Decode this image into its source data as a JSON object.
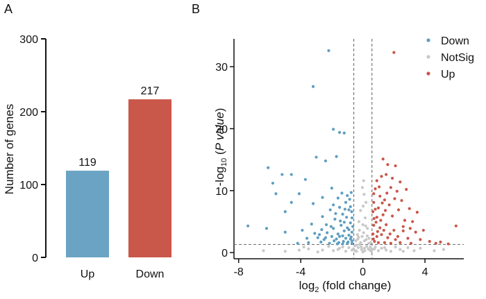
{
  "panels": {
    "a": "A",
    "b": "B"
  },
  "colors": {
    "up": "#c9574a",
    "down": "#5f9ec0",
    "notsig": "#c8c8c8",
    "bar_up": "#6aa3c4",
    "bar_down": "#c9574a"
  },
  "chart_data": [
    {
      "type": "bar",
      "categories": [
        "Up",
        "Down"
      ],
      "values": [
        119,
        217
      ],
      "data_labels": [
        "119",
        "217"
      ],
      "ylabel": "Number of genes",
      "ylim": [
        0,
        300
      ],
      "yticks": [
        0,
        100,
        200,
        300
      ]
    },
    {
      "type": "scatter",
      "xlabel": {
        "base": "log",
        "sub": "2",
        "rest": " (fold change)"
      },
      "ylabel": {
        "base": "-log",
        "sub": "10",
        "open": " (",
        "ital": "P value",
        "close": ")"
      },
      "xlim": [
        -8.3,
        6.5
      ],
      "ylim": [
        -1,
        34.5
      ],
      "xticks": [
        -8,
        -4,
        0,
        4
      ],
      "yticks": [
        0,
        10,
        20,
        30
      ],
      "thresholds": {
        "x": [
          -0.585,
          0.585
        ],
        "y": 1.3
      },
      "legend": {
        "position": "top-right",
        "entries": [
          "Down",
          "NotSig",
          "Up"
        ]
      },
      "series": [
        {
          "name": "Down",
          "points": [
            [
              -2.2,
              32.6
            ],
            [
              -3.2,
              26.8
            ],
            [
              -1.9,
              19.9
            ],
            [
              -1.5,
              19.4
            ],
            [
              -1.2,
              19.3
            ],
            [
              -3.0,
              15.4
            ],
            [
              -1.7,
              15.5
            ],
            [
              -2.4,
              14.8
            ],
            [
              -6.1,
              13.7
            ],
            [
              -5.2,
              12.6
            ],
            [
              -4.6,
              12.6
            ],
            [
              -3.7,
              11.8
            ],
            [
              -5.8,
              11.2
            ],
            [
              -5.6,
              9.5
            ],
            [
              -4.1,
              9.5
            ],
            [
              -4.6,
              8.1
            ],
            [
              -5.0,
              6.6
            ],
            [
              -3.2,
              7.9
            ],
            [
              -2.6,
              8.9
            ],
            [
              -2.0,
              10.4
            ],
            [
              -7.4,
              4.3
            ],
            [
              -6.2,
              3.9
            ],
            [
              -5.0,
              3.3
            ],
            [
              -3.9,
              3.6
            ],
            [
              -3.3,
              4.6
            ],
            [
              -2.6,
              5.8
            ],
            [
              -2.1,
              6.9
            ],
            [
              -1.8,
              5.4
            ],
            [
              -1.5,
              7.3
            ],
            [
              -1.3,
              6.2
            ],
            [
              -1.1,
              8.1
            ],
            [
              -0.9,
              6.9
            ],
            [
              -0.8,
              4.8
            ],
            [
              -1.0,
              4.0
            ],
            [
              -1.2,
              3.5
            ],
            [
              -1.4,
              4.4
            ],
            [
              -1.6,
              3.0
            ],
            [
              -1.9,
              3.9
            ],
            [
              -2.3,
              3.2
            ],
            [
              -2.8,
              2.9
            ],
            [
              -3.1,
              3.1
            ],
            [
              -0.7,
              3.3
            ],
            [
              -0.75,
              2.5
            ],
            [
              -0.9,
              2.8
            ],
            [
              -1.1,
              2.3
            ],
            [
              -1.3,
              2.7
            ],
            [
              -1.7,
              2.2
            ],
            [
              -2.0,
              2.6
            ],
            [
              -2.5,
              2.1
            ],
            [
              -0.7,
              5.6
            ],
            [
              -0.8,
              7.4
            ],
            [
              -1.0,
              9.2
            ],
            [
              -0.7,
              1.9
            ],
            [
              -0.95,
              1.7
            ],
            [
              -1.25,
              1.8
            ],
            [
              -1.55,
              1.6
            ],
            [
              -1.85,
              1.9
            ],
            [
              -2.15,
              1.5
            ],
            [
              -2.7,
              1.7
            ],
            [
              -3.5,
              1.6
            ],
            [
              -4.2,
              1.5
            ],
            [
              -0.65,
              4.2
            ],
            [
              -1.45,
              5.1
            ],
            [
              -1.75,
              6.3
            ],
            [
              -0.85,
              8.6
            ],
            [
              -1.05,
              5.7
            ],
            [
              -1.35,
              9.6
            ],
            [
              -2.35,
              4.5
            ],
            [
              -2.65,
              3.7
            ],
            [
              -1.6,
              8.8
            ],
            [
              -1.15,
              7.0
            ],
            [
              -0.72,
              6.6
            ],
            [
              -0.9,
              3.7
            ],
            [
              -1.2,
              4.9
            ],
            [
              -1.5,
              2.6
            ],
            [
              -2.05,
              4.2
            ],
            [
              -0.8,
              2.2
            ],
            [
              -0.7,
              1.5
            ],
            [
              -1.0,
              1.5
            ],
            [
              -1.3,
              1.4
            ],
            [
              -1.65,
              1.4
            ],
            [
              -2.4,
              2.4
            ],
            [
              -2.9,
              2.4
            ],
            [
              -3.6,
              2.3
            ],
            [
              -0.75,
              9.7
            ],
            [
              -1.9,
              7.7
            ]
          ]
        },
        {
          "name": "NotSig",
          "points": [
            [
              0.0,
              4.5
            ],
            [
              0.05,
              3.2
            ],
            [
              -0.05,
              2.6
            ],
            [
              0.15,
              5.6
            ],
            [
              -0.15,
              6.8
            ],
            [
              0.2,
              8.1
            ],
            [
              -0.25,
              5.0
            ],
            [
              0.3,
              3.9
            ],
            [
              -0.35,
              2.9
            ],
            [
              0.4,
              2.3
            ],
            [
              -0.45,
              1.9
            ],
            [
              0.5,
              1.6
            ],
            [
              0.1,
              1.9
            ],
            [
              -0.2,
              1.3
            ],
            [
              0.25,
              1.0
            ],
            [
              -0.3,
              0.8
            ],
            [
              0.35,
              0.6
            ],
            [
              0.45,
              0.4
            ],
            [
              -0.5,
              0.3
            ],
            [
              0.55,
              0.2
            ],
            [
              -0.1,
              0.9
            ],
            [
              0.6,
              0.5
            ],
            [
              -0.6,
              0.6
            ],
            [
              -0.4,
              0.2
            ],
            [
              0.0,
              0.1
            ],
            [
              0.12,
              0.3
            ],
            [
              -0.08,
              0.5
            ],
            [
              1.2,
              0.7
            ],
            [
              -1.3,
              0.9
            ],
            [
              2.4,
              0.5
            ],
            [
              -2.6,
              0.4
            ],
            [
              3.3,
              0.3
            ],
            [
              -3.5,
              0.6
            ],
            [
              1.8,
              0.2
            ],
            [
              -1.9,
              0.3
            ],
            [
              0.8,
              0.9
            ],
            [
              -0.9,
              0.8
            ],
            [
              1.5,
              0.4
            ],
            [
              -1.6,
              0.5
            ],
            [
              2.9,
              0.8
            ],
            [
              -4.1,
              0.4
            ],
            [
              4.6,
              0.3
            ],
            [
              -5.0,
              0.2
            ],
            [
              -6.4,
              0.3
            ],
            [
              0.02,
              7.5
            ],
            [
              0.08,
              9.4
            ],
            [
              -0.03,
              10.5
            ],
            [
              0.05,
              11.6
            ],
            [
              0.18,
              4.3
            ],
            [
              -0.22,
              3.6
            ],
            [
              0.28,
              2.7
            ],
            [
              -0.32,
              2.2
            ],
            [
              0.38,
              1.5
            ],
            [
              -0.42,
              1.2
            ],
            [
              0.48,
              0.9
            ],
            [
              -0.52,
              1.1
            ],
            [
              -0.7,
              0.4
            ],
            [
              0.75,
              0.6
            ],
            [
              1.0,
              0.3
            ],
            [
              -1.1,
              0.2
            ],
            [
              1.4,
              0.8
            ],
            [
              -1.5,
              0.7
            ],
            [
              2.1,
              0.9
            ],
            [
              -2.2,
              1.0
            ],
            [
              2.6,
              0.2
            ],
            [
              -2.9,
              0.1
            ],
            [
              3.7,
              0.7
            ],
            [
              -3.8,
              0.9
            ],
            [
              5.2,
              0.5
            ],
            [
              0.1,
              0.7
            ],
            [
              -0.14,
              1.6
            ],
            [
              0.22,
              2.1
            ],
            [
              -0.28,
              2.5
            ]
          ]
        },
        {
          "name": "Up",
          "points": [
            [
              2.0,
              32.3
            ],
            [
              1.3,
              15.1
            ],
            [
              1.6,
              14.2
            ],
            [
              2.1,
              14.0
            ],
            [
              1.5,
              12.6
            ],
            [
              1.2,
              12.3
            ],
            [
              0.9,
              11.6
            ],
            [
              2.4,
              11.4
            ],
            [
              0.8,
              10.3
            ],
            [
              1.8,
              10.5
            ],
            [
              1.1,
              9.1
            ],
            [
              2.2,
              9.9
            ],
            [
              2.8,
              10.2
            ],
            [
              1.4,
              8.5
            ],
            [
              0.7,
              8.1
            ],
            [
              1.0,
              7.2
            ],
            [
              1.7,
              7.7
            ],
            [
              2.5,
              8.4
            ],
            [
              3.0,
              7.1
            ],
            [
              3.5,
              6.5
            ],
            [
              0.65,
              6.6
            ],
            [
              0.9,
              5.7
            ],
            [
              1.3,
              6.1
            ],
            [
              1.9,
              5.9
            ],
            [
              2.3,
              6.9
            ],
            [
              2.7,
              5.2
            ],
            [
              3.2,
              5.0
            ],
            [
              0.7,
              4.4
            ],
            [
              1.1,
              4.0
            ],
            [
              1.5,
              4.5
            ],
            [
              2.0,
              3.6
            ],
            [
              2.6,
              3.5
            ],
            [
              3.4,
              3.3
            ],
            [
              3.9,
              3.6
            ],
            [
              0.65,
              3.0
            ],
            [
              0.9,
              2.6
            ],
            [
              1.2,
              2.9
            ],
            [
              1.6,
              2.4
            ],
            [
              2.1,
              2.1
            ],
            [
              2.9,
              2.3
            ],
            [
              3.7,
              2.1
            ],
            [
              4.3,
              1.8
            ],
            [
              5.0,
              1.7
            ],
            [
              6.0,
              4.3
            ],
            [
              0.75,
              1.8
            ],
            [
              1.0,
              1.6
            ],
            [
              1.4,
              1.6
            ],
            [
              1.8,
              1.5
            ],
            [
              2.4,
              1.6
            ],
            [
              3.1,
              1.5
            ],
            [
              4.7,
              1.5
            ],
            [
              5.5,
              1.4
            ],
            [
              0.8,
              7.0
            ],
            [
              1.25,
              8.0
            ],
            [
              1.55,
              9.6
            ],
            [
              2.05,
              8.7
            ],
            [
              0.7,
              9.5
            ],
            [
              1.9,
              12.0
            ],
            [
              1.05,
              10.6
            ],
            [
              2.6,
              4.2
            ],
            [
              3.05,
              3.9
            ],
            [
              0.95,
              3.4
            ],
            [
              1.35,
              3.6
            ],
            [
              1.75,
              3.0
            ],
            [
              2.25,
              2.6
            ],
            [
              0.68,
              2.2
            ],
            [
              0.85,
              4.9
            ],
            [
              1.15,
              5.2
            ],
            [
              1.45,
              6.8
            ],
            [
              0.72,
              5.5
            ]
          ]
        }
      ]
    }
  ]
}
